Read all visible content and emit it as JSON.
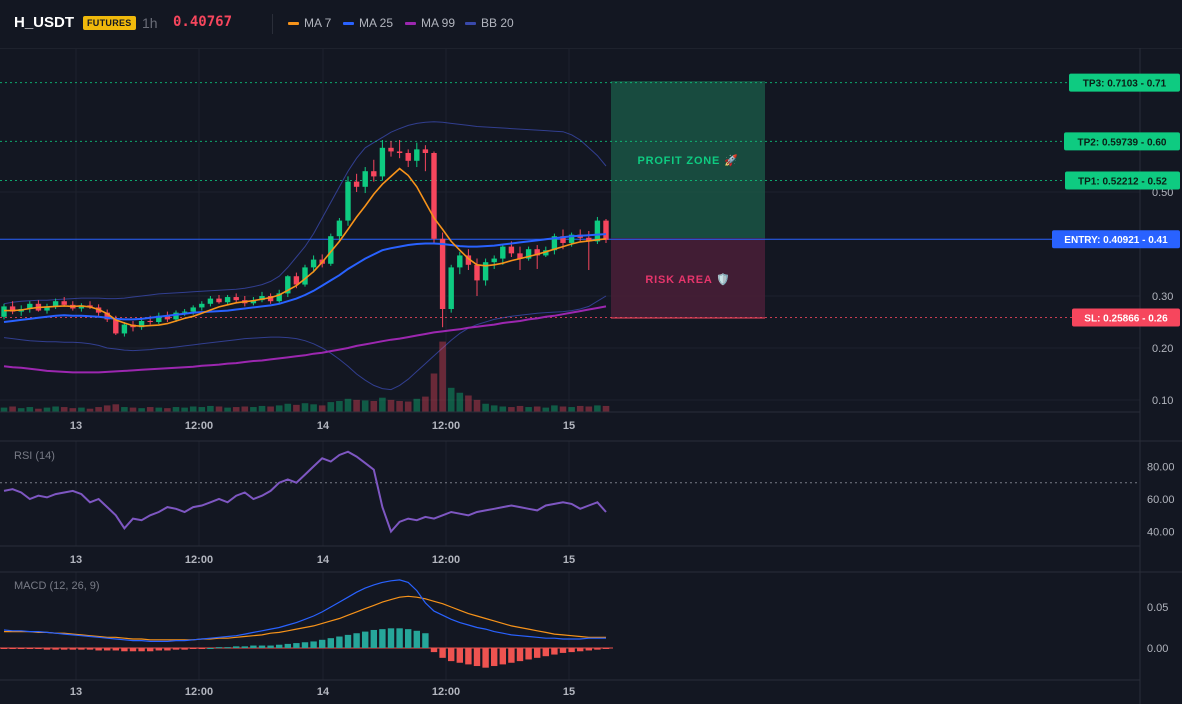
{
  "header": {
    "symbol": "H_USDT",
    "badge": "FUTURES",
    "timeframe": "1h",
    "last_price": "0.40767",
    "legend": [
      {
        "label": "MA 7",
        "color": "#f7931a"
      },
      {
        "label": "MA 25",
        "color": "#2962ff"
      },
      {
        "label": "MA 99",
        "color": "#9c27b0"
      },
      {
        "label": "BB 20",
        "color": "#3949ab"
      }
    ]
  },
  "colors": {
    "up": "#0ecb81",
    "down": "#f6465d",
    "macd_up": "#26a69a",
    "macd_down": "#ef5350"
  },
  "price_axis": {
    "ticks": [
      "0.50",
      "0.30",
      "0.20",
      "0.10"
    ]
  },
  "levels": {
    "tp3": {
      "label": "TP3: 0.7103 - 0.71",
      "value": 0.7103
    },
    "tp2": {
      "label": "TP2: 0.59739 - 0.60",
      "value": 0.59739
    },
    "tp1": {
      "label": "TP1: 0.52212 - 0.52",
      "value": 0.52212
    },
    "entry": {
      "label": "ENTRY: 0.40921 - 0.41",
      "value": 0.40921
    },
    "sl": {
      "label": "SL: 0.25866 - 0.26",
      "value": 0.25866
    }
  },
  "zones": {
    "profit": "PROFIT ZONE 🚀",
    "risk": "RISK AREA 🛡️"
  },
  "time_axis": [
    "13",
    "12:00",
    "14",
    "12:00",
    "15"
  ],
  "rsi": {
    "label": "RSI (14)",
    "ticks": [
      "80.00",
      "60.00",
      "40.00"
    ],
    "overbought": 70
  },
  "macd": {
    "label": "MACD (12, 26, 9)",
    "ticks": [
      "0.05",
      "0.00"
    ]
  },
  "chart_data": [
    {
      "type": "candlestick",
      "ylim": [
        0.08,
        0.78
      ],
      "candles_ohlc": [
        [
          0.26,
          0.285,
          0.255,
          0.28
        ],
        [
          0.28,
          0.29,
          0.265,
          0.27
        ],
        [
          0.27,
          0.282,
          0.262,
          0.275
        ],
        [
          0.275,
          0.29,
          0.268,
          0.285
        ],
        [
          0.285,
          0.292,
          0.27,
          0.272
        ],
        [
          0.272,
          0.285,
          0.266,
          0.28
        ],
        [
          0.28,
          0.295,
          0.275,
          0.29
        ],
        [
          0.29,
          0.298,
          0.28,
          0.283
        ],
        [
          0.283,
          0.29,
          0.272,
          0.276
        ],
        [
          0.276,
          0.286,
          0.27,
          0.282
        ],
        [
          0.282,
          0.29,
          0.275,
          0.278
        ],
        [
          0.278,
          0.284,
          0.262,
          0.268
        ],
        [
          0.268,
          0.274,
          0.25,
          0.255
        ],
        [
          0.255,
          0.262,
          0.225,
          0.228
        ],
        [
          0.228,
          0.25,
          0.222,
          0.245
        ],
        [
          0.245,
          0.252,
          0.232,
          0.24
        ],
        [
          0.24,
          0.255,
          0.235,
          0.252
        ],
        [
          0.252,
          0.262,
          0.245,
          0.25
        ],
        [
          0.25,
          0.268,
          0.246,
          0.262
        ],
        [
          0.262,
          0.27,
          0.25,
          0.255
        ],
        [
          0.255,
          0.272,
          0.25,
          0.268
        ],
        [
          0.268,
          0.275,
          0.262,
          0.27
        ],
        [
          0.27,
          0.282,
          0.264,
          0.278
        ],
        [
          0.278,
          0.29,
          0.272,
          0.285
        ],
        [
          0.285,
          0.3,
          0.28,
          0.295
        ],
        [
          0.295,
          0.302,
          0.285,
          0.288
        ],
        [
          0.288,
          0.302,
          0.282,
          0.298
        ],
        [
          0.298,
          0.305,
          0.288,
          0.292
        ],
        [
          0.292,
          0.3,
          0.28,
          0.286
        ],
        [
          0.286,
          0.298,
          0.282,
          0.292
        ],
        [
          0.292,
          0.308,
          0.288,
          0.3
        ],
        [
          0.3,
          0.305,
          0.285,
          0.29
        ],
        [
          0.29,
          0.312,
          0.287,
          0.305
        ],
        [
          0.305,
          0.34,
          0.298,
          0.338
        ],
        [
          0.338,
          0.345,
          0.315,
          0.322
        ],
        [
          0.322,
          0.36,
          0.318,
          0.355
        ],
        [
          0.355,
          0.378,
          0.345,
          0.37
        ],
        [
          0.37,
          0.38,
          0.355,
          0.362
        ],
        [
          0.362,
          0.42,
          0.358,
          0.415
        ],
        [
          0.415,
          0.45,
          0.405,
          0.445
        ],
        [
          0.445,
          0.53,
          0.435,
          0.52
        ],
        [
          0.52,
          0.535,
          0.5,
          0.51
        ],
        [
          0.51,
          0.548,
          0.498,
          0.54
        ],
        [
          0.54,
          0.562,
          0.52,
          0.53
        ],
        [
          0.53,
          0.6,
          0.522,
          0.585
        ],
        [
          0.585,
          0.598,
          0.568,
          0.578
        ],
        [
          0.578,
          0.6,
          0.565,
          0.575
        ],
        [
          0.575,
          0.582,
          0.548,
          0.56
        ],
        [
          0.56,
          0.595,
          0.548,
          0.582
        ],
        [
          0.582,
          0.59,
          0.54,
          0.575
        ],
        [
          0.575,
          0.578,
          0.4,
          0.41
        ],
        [
          0.41,
          0.422,
          0.24,
          0.275
        ],
        [
          0.275,
          0.36,
          0.268,
          0.355
        ],
        [
          0.355,
          0.385,
          0.342,
          0.378
        ],
        [
          0.378,
          0.39,
          0.35,
          0.36
        ],
        [
          0.36,
          0.372,
          0.3,
          0.33
        ],
        [
          0.33,
          0.372,
          0.32,
          0.365
        ],
        [
          0.365,
          0.378,
          0.352,
          0.372
        ],
        [
          0.372,
          0.4,
          0.36,
          0.395
        ],
        [
          0.395,
          0.405,
          0.375,
          0.382
        ],
        [
          0.382,
          0.395,
          0.35,
          0.372
        ],
        [
          0.372,
          0.395,
          0.368,
          0.39
        ],
        [
          0.39,
          0.398,
          0.352,
          0.378
        ],
        [
          0.378,
          0.395,
          0.375,
          0.388
        ],
        [
          0.388,
          0.42,
          0.38,
          0.415
        ],
        [
          0.415,
          0.428,
          0.39,
          0.402
        ],
        [
          0.402,
          0.422,
          0.395,
          0.418
        ],
        [
          0.418,
          0.428,
          0.405,
          0.412
        ],
        [
          0.412,
          0.425,
          0.35,
          0.405
        ],
        [
          0.405,
          0.452,
          0.4,
          0.445
        ],
        [
          0.445,
          0.448,
          0.402,
          0.408
        ]
      ],
      "ma7": [
        0.272,
        0.272,
        0.273,
        0.276,
        0.278,
        0.279,
        0.28,
        0.281,
        0.28,
        0.281,
        0.279,
        0.274,
        0.266,
        0.254,
        0.248,
        0.243,
        0.242,
        0.243,
        0.244,
        0.247,
        0.252,
        0.257,
        0.261,
        0.267,
        0.273,
        0.279,
        0.283,
        0.287,
        0.289,
        0.291,
        0.294,
        0.297,
        0.302,
        0.311,
        0.32,
        0.333,
        0.347,
        0.365,
        0.385,
        0.405,
        0.428,
        0.452,
        0.473,
        0.496,
        0.515,
        0.53,
        0.545,
        0.532,
        0.51,
        0.48,
        0.45,
        0.428,
        0.405,
        0.388,
        0.372,
        0.36,
        0.358,
        0.36,
        0.363,
        0.368,
        0.372,
        0.376,
        0.38,
        0.385,
        0.39,
        0.395,
        0.4,
        0.404,
        0.406,
        0.408,
        0.41
      ],
      "ma25": [
        0.25,
        0.252,
        0.254,
        0.256,
        0.258,
        0.26,
        0.262,
        0.263,
        0.262,
        0.262,
        0.261,
        0.26,
        0.258,
        0.256,
        0.255,
        0.255,
        0.256,
        0.258,
        0.26,
        0.262,
        0.264,
        0.266,
        0.268,
        0.269,
        0.27,
        0.271,
        0.272,
        0.274,
        0.276,
        0.278,
        0.28,
        0.282,
        0.285,
        0.29,
        0.295,
        0.302,
        0.31,
        0.32,
        0.33,
        0.34,
        0.352,
        0.362,
        0.372,
        0.38,
        0.388,
        0.392,
        0.395,
        0.398,
        0.4,
        0.401,
        0.401,
        0.4,
        0.398,
        0.396,
        0.395,
        0.395,
        0.396,
        0.397,
        0.399,
        0.401,
        0.403,
        0.405,
        0.407,
        0.409,
        0.411,
        0.413,
        0.415,
        0.416,
        0.417,
        0.418,
        0.419
      ],
      "ma99": [
        0.165,
        0.163,
        0.162,
        0.16,
        0.158,
        0.156,
        0.155,
        0.154,
        0.153,
        0.153,
        0.153,
        0.153,
        0.154,
        0.155,
        0.156,
        0.157,
        0.158,
        0.159,
        0.16,
        0.161,
        0.162,
        0.163,
        0.164,
        0.166,
        0.167,
        0.168,
        0.17,
        0.171,
        0.173,
        0.175,
        0.176,
        0.178,
        0.18,
        0.182,
        0.184,
        0.186,
        0.189,
        0.191,
        0.194,
        0.197,
        0.2,
        0.204,
        0.207,
        0.21,
        0.213,
        0.216,
        0.218,
        0.221,
        0.224,
        0.227,
        0.23,
        0.232,
        0.234,
        0.236,
        0.239,
        0.241,
        0.243,
        0.245,
        0.248,
        0.25,
        0.252,
        0.255,
        0.257,
        0.26,
        0.262,
        0.265,
        0.268,
        0.271,
        0.274,
        0.277,
        0.28
      ],
      "bb_upper": [
        0.285,
        0.288,
        0.29,
        0.291,
        0.292,
        0.292,
        0.293,
        0.294,
        0.295,
        0.296,
        0.296,
        0.296,
        0.295,
        0.295,
        0.296,
        0.298,
        0.3,
        0.302,
        0.304,
        0.305,
        0.306,
        0.307,
        0.308,
        0.309,
        0.31,
        0.311,
        0.312,
        0.313,
        0.315,
        0.318,
        0.322,
        0.328,
        0.338,
        0.355,
        0.375,
        0.395,
        0.42,
        0.45,
        0.48,
        0.51,
        0.54,
        0.565,
        0.585,
        0.595,
        0.605,
        0.615,
        0.622,
        0.628,
        0.632,
        0.634,
        0.635,
        0.634,
        0.632,
        0.63,
        0.628,
        0.626,
        0.625,
        0.624,
        0.623,
        0.622,
        0.621,
        0.62,
        0.619,
        0.618,
        0.617,
        0.616,
        0.61,
        0.6,
        0.585,
        0.57,
        0.55
      ],
      "bb_lower": [
        0.22,
        0.218,
        0.216,
        0.214,
        0.213,
        0.212,
        0.212,
        0.211,
        0.211,
        0.21,
        0.208,
        0.205,
        0.2,
        0.198,
        0.196,
        0.195,
        0.196,
        0.197,
        0.199,
        0.2,
        0.202,
        0.204,
        0.206,
        0.208,
        0.21,
        0.212,
        0.214,
        0.216,
        0.218,
        0.219,
        0.22,
        0.221,
        0.221,
        0.22,
        0.218,
        0.214,
        0.208,
        0.2,
        0.19,
        0.178,
        0.165,
        0.15,
        0.138,
        0.128,
        0.122,
        0.12,
        0.128,
        0.14,
        0.155,
        0.17,
        0.185,
        0.2,
        0.215,
        0.228,
        0.238,
        0.245,
        0.25,
        0.255,
        0.258,
        0.261,
        0.263,
        0.265,
        0.267,
        0.268,
        0.269,
        0.27,
        0.272,
        0.275,
        0.28,
        0.29,
        0.3
      ],
      "volume": [
        8,
        10,
        7,
        9,
        6,
        8,
        10,
        9,
        7,
        8,
        6,
        9,
        12,
        14,
        9,
        8,
        7,
        9,
        8,
        7,
        9,
        8,
        10,
        9,
        11,
        10,
        8,
        9,
        10,
        9,
        11,
        10,
        12,
        15,
        13,
        16,
        14,
        12,
        18,
        20,
        24,
        22,
        21,
        20,
        26,
        22,
        20,
        19,
        24,
        28,
        70,
        128,
        44,
        35,
        30,
        22,
        15,
        12,
        10,
        9,
        11,
        9,
        10,
        8,
        12,
        10,
        9,
        11,
        10,
        12,
        11
      ]
    },
    {
      "type": "line",
      "name": "RSI (14)",
      "ylim": [
        30,
        95
      ],
      "values": [
        65,
        66,
        64,
        60,
        62,
        61,
        63,
        64,
        65,
        63,
        58,
        60,
        55,
        50,
        42,
        48,
        47,
        50,
        52,
        55,
        54,
        52,
        55,
        56,
        58,
        60,
        58,
        62,
        64,
        60,
        62,
        65,
        70,
        72,
        70,
        75,
        80,
        85,
        83,
        87,
        89,
        86,
        82,
        78,
        55,
        40,
        46,
        48,
        47,
        49,
        48,
        50,
        52,
        51,
        50,
        52,
        53,
        54,
        55,
        56,
        55,
        54,
        53,
        56,
        57,
        58,
        57,
        54,
        56,
        58,
        52
      ]
    },
    {
      "type": "bar+line",
      "name": "MACD (12, 26, 9)",
      "ylim": [
        -0.025,
        0.085
      ],
      "histogram": [
        -0.001,
        -0.001,
        -0.001,
        -0.001,
        -0.001,
        -0.002,
        -0.002,
        -0.002,
        -0.002,
        -0.002,
        -0.002,
        -0.003,
        -0.003,
        -0.003,
        -0.004,
        -0.004,
        -0.004,
        -0.004,
        -0.003,
        -0.003,
        -0.002,
        -0.002,
        -0.001,
        -0.001,
        0.0,
        0.001,
        0.001,
        0.002,
        0.002,
        0.003,
        0.003,
        0.003,
        0.004,
        0.005,
        0.006,
        0.007,
        0.008,
        0.01,
        0.012,
        0.014,
        0.016,
        0.018,
        0.02,
        0.022,
        0.023,
        0.024,
        0.024,
        0.023,
        0.021,
        0.018,
        -0.005,
        -0.012,
        -0.016,
        -0.018,
        -0.02,
        -0.022,
        -0.024,
        -0.022,
        -0.02,
        -0.018,
        -0.016,
        -0.014,
        -0.012,
        -0.01,
        -0.008,
        -0.006,
        -0.005,
        -0.004,
        -0.003,
        -0.002,
        -0.001
      ],
      "macd_line": [
        0.022,
        0.021,
        0.021,
        0.02,
        0.02,
        0.019,
        0.018,
        0.017,
        0.016,
        0.015,
        0.014,
        0.013,
        0.012,
        0.011,
        0.01,
        0.009,
        0.009,
        0.008,
        0.008,
        0.008,
        0.009,
        0.009,
        0.01,
        0.011,
        0.012,
        0.013,
        0.014,
        0.015,
        0.017,
        0.019,
        0.021,
        0.023,
        0.025,
        0.028,
        0.031,
        0.035,
        0.039,
        0.044,
        0.05,
        0.056,
        0.062,
        0.068,
        0.073,
        0.077,
        0.08,
        0.082,
        0.083,
        0.08,
        0.07,
        0.055,
        0.045,
        0.04,
        0.035,
        0.031,
        0.028,
        0.025,
        0.023,
        0.02,
        0.018,
        0.016,
        0.015,
        0.014,
        0.013,
        0.012,
        0.012,
        0.011,
        0.011,
        0.011,
        0.012,
        0.012,
        0.012
      ],
      "signal_line": [
        0.02,
        0.02,
        0.02,
        0.02,
        0.019,
        0.019,
        0.018,
        0.018,
        0.017,
        0.016,
        0.015,
        0.014,
        0.013,
        0.013,
        0.012,
        0.011,
        0.011,
        0.01,
        0.01,
        0.01,
        0.01,
        0.01,
        0.01,
        0.011,
        0.011,
        0.012,
        0.012,
        0.013,
        0.014,
        0.015,
        0.016,
        0.018,
        0.019,
        0.021,
        0.023,
        0.025,
        0.027,
        0.03,
        0.033,
        0.036,
        0.04,
        0.044,
        0.048,
        0.052,
        0.056,
        0.059,
        0.062,
        0.063,
        0.062,
        0.06,
        0.057,
        0.054,
        0.05,
        0.046,
        0.042,
        0.039,
        0.036,
        0.033,
        0.03,
        0.027,
        0.025,
        0.023,
        0.021,
        0.019,
        0.017,
        0.016,
        0.015,
        0.014,
        0.013,
        0.013,
        0.013
      ]
    }
  ]
}
